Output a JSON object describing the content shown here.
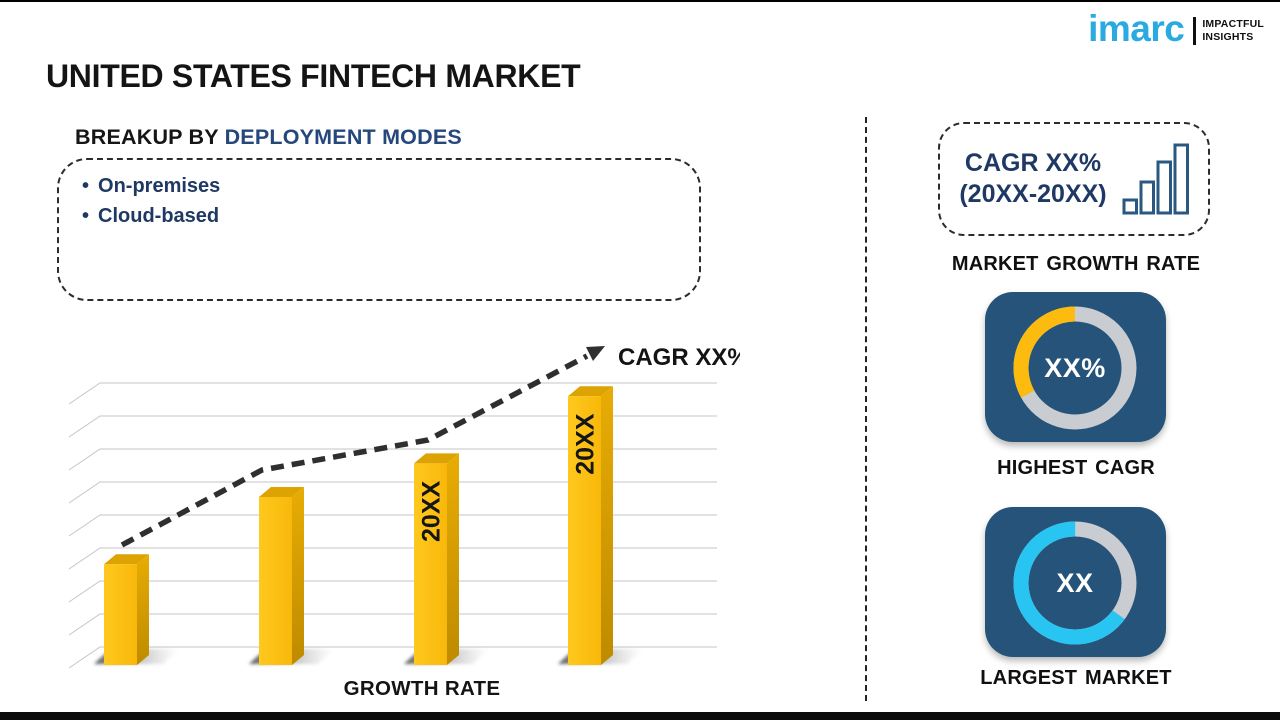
{
  "header": {
    "title": "UNITED STATES FINTECH MARKET"
  },
  "logo": {
    "brand": "imarc",
    "tagline_line1": "IMPACTFUL",
    "tagline_line2": "INSIGHTS",
    "brand_color": "#29ABE2"
  },
  "breakup": {
    "heading_prefix": "BREAKUP BY",
    "heading_highlight": "DEPLOYMENT MODES",
    "items": [
      "On-premises",
      "Cloud-based"
    ]
  },
  "chart_data": {
    "type": "bar",
    "title": "GROWTH RATE",
    "annotation": "CAGR XX%",
    "bars": [
      {
        "label": "",
        "rel_height": 36
      },
      {
        "label": "",
        "rel_height": 60
      },
      {
        "label": "20XX",
        "rel_height": 72
      },
      {
        "label": "20XX",
        "rel_height": 96
      }
    ],
    "values_gridline_units": [
      3,
      5,
      6,
      8
    ],
    "xlabel": "GROWTH RATE",
    "ylabel": "",
    "gridlines": 9,
    "grid": true,
    "legend": false,
    "trend": "dashed rising arrow to CAGR XX%",
    "bar_color": "#FFC10D"
  },
  "sidebar": {
    "growth_card": {
      "line1": "CAGR XX%",
      "line2": "(20XX-20XX)"
    },
    "market_growth_label": "MARKET GROWTH RATE",
    "highest_cagr": {
      "value": "XX%",
      "label": "HIGHEST CAGR",
      "accent_color": "#FCBB0E",
      "accent_pct": 33
    },
    "largest_market": {
      "value": "XX",
      "label": "LARGEST MARKET",
      "accent_color": "#29C5F2",
      "accent_pct": 65
    }
  },
  "colors": {
    "navy_text": "#1F3864",
    "heading_highlight": "#24477C",
    "card_background": "#265379",
    "donut_track_gray": "#C9CDD2",
    "bar_gold": "#FFC10D",
    "trend_line": "#2F2F2F"
  }
}
